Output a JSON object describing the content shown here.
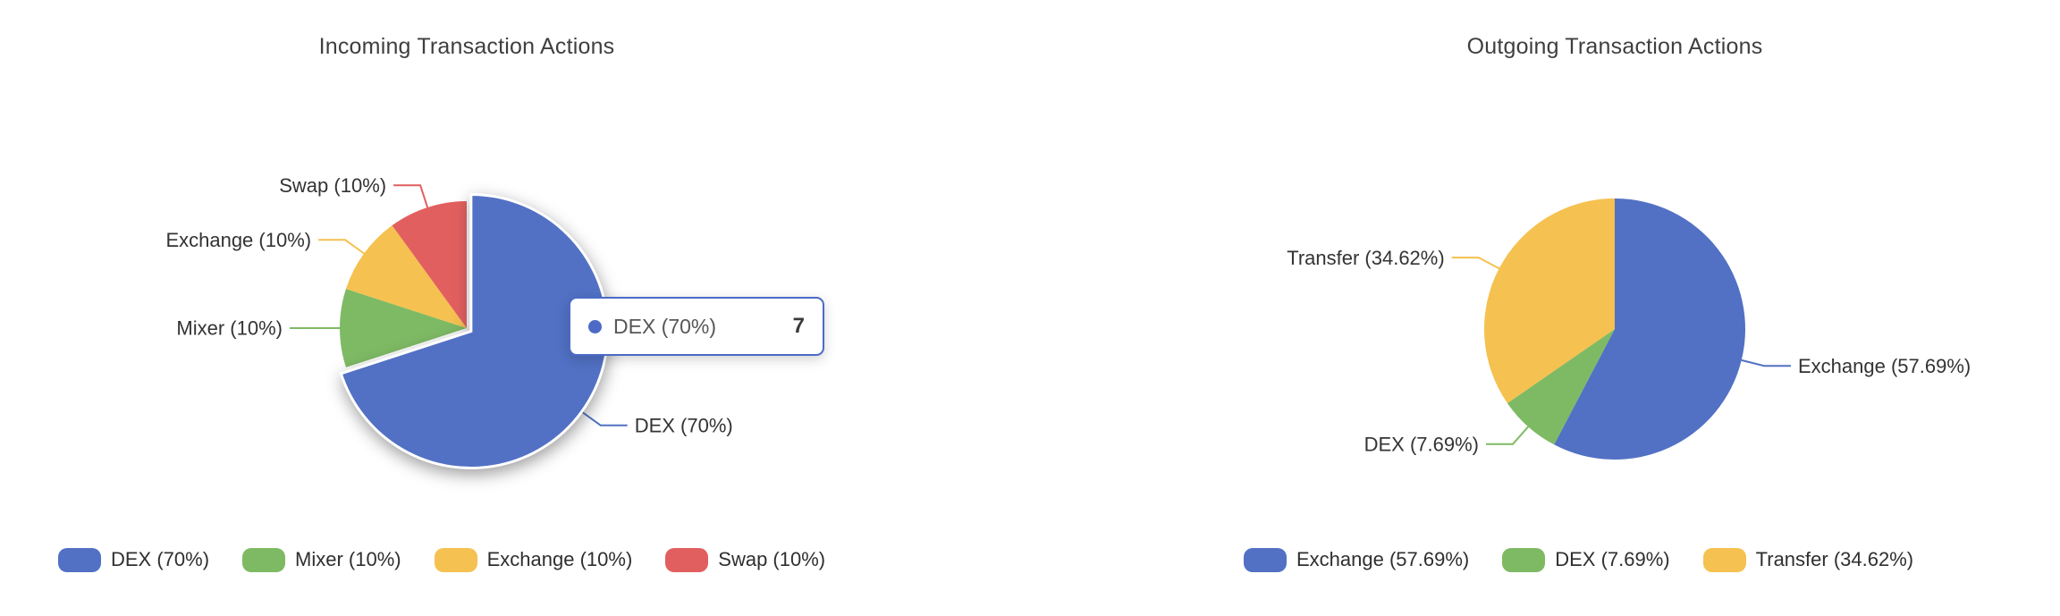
{
  "page": {
    "background": "#ffffff"
  },
  "palette": {
    "blue": "#5271c4",
    "green": "#7eba64",
    "yellow": "#f5c150",
    "red": "#e25f5f"
  },
  "chart_data": [
    {
      "type": "pie",
      "title": "Incoming Transaction Actions",
      "legend_position": "bottom-left",
      "legend": [
        "DEX (70%)",
        "Mixer (10%)",
        "Exchange (10%)",
        "Swap (10%)"
      ],
      "slices": [
        {
          "name": "DEX",
          "label": "DEX (70%)",
          "pct": 70,
          "value": 7,
          "color": "#5271c4",
          "hovered": true
        },
        {
          "name": "Mixer",
          "label": "Mixer (10%)",
          "pct": 10,
          "color": "#7eba64"
        },
        {
          "name": "Exchange",
          "label": "Exchange (10%)",
          "pct": 10,
          "color": "#f5c150"
        },
        {
          "name": "Swap",
          "label": "Swap (10%)",
          "pct": 10,
          "color": "#e25f5f"
        }
      ]
    },
    {
      "type": "pie",
      "title": "Outgoing Transaction Actions",
      "legend_position": "bottom-left",
      "legend": [
        "Exchange (57.69%)",
        "DEX (7.69%)",
        "Transfer (34.62%)"
      ],
      "slices": [
        {
          "name": "Exchange",
          "label": "Exchange (57.69%)",
          "pct": 57.69,
          "color": "#5271c4"
        },
        {
          "name": "DEX",
          "label": "DEX (7.69%)",
          "pct": 7.69,
          "color": "#7eba64"
        },
        {
          "name": "Transfer",
          "label": "Transfer (34.62%)",
          "pct": 34.62,
          "color": "#f5c150"
        }
      ]
    }
  ],
  "tooltip": {
    "series": "DEX",
    "label": "DEX (70%)",
    "value": "7",
    "accent": "#4c6ac6"
  }
}
